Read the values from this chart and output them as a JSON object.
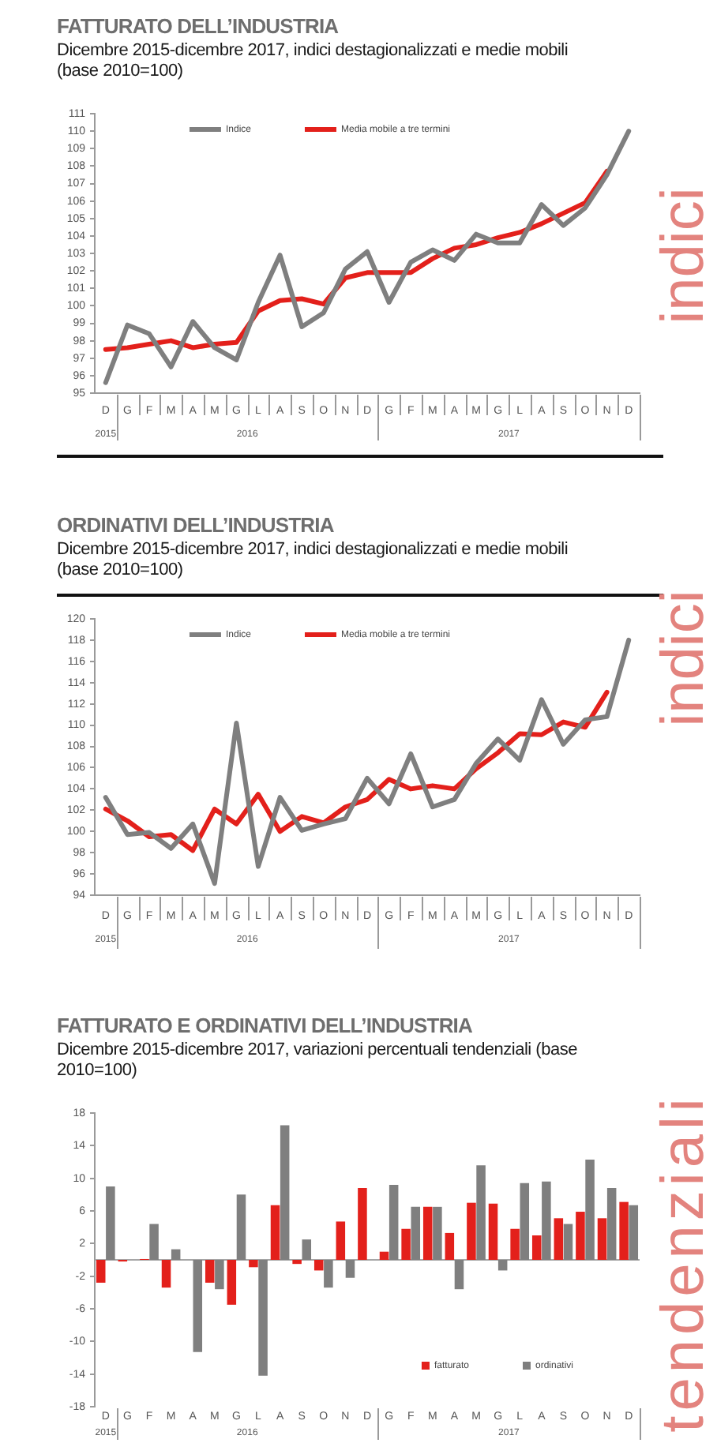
{
  "chart_data": [
    {
      "type": "line",
      "title": "FATTURATO DELL’INDUSTRIA",
      "subtitle": "Dicembre 2015-dicembre 2017, indici destagionalizzati e medie mobili (base 2010=100)",
      "categories": [
        "D",
        "G",
        "F",
        "M",
        "A",
        "M",
        "G",
        "L",
        "A",
        "S",
        "O",
        "N",
        "D",
        "G",
        "F",
        "M",
        "A",
        "M",
        "G",
        "L",
        "A",
        "S",
        "O",
        "N",
        "D"
      ],
      "series": [
        {
          "name": "Indice",
          "color": "#7f7f7f",
          "values": [
            95.6,
            98.9,
            98.4,
            96.5,
            99.1,
            97.6,
            96.9,
            100.2,
            102.9,
            98.8,
            99.6,
            102.1,
            103.1,
            100.2,
            102.5,
            103.2,
            102.6,
            104.1,
            103.6,
            103.6,
            105.8,
            104.6,
            105.6,
            107.5,
            110.0
          ]
        },
        {
          "name": "Media mobile a tre termini",
          "color": "#e3201b",
          "values": [
            97.5,
            97.6,
            97.8,
            98.0,
            97.6,
            97.8,
            97.9,
            99.7,
            100.3,
            100.4,
            100.1,
            101.6,
            101.9,
            101.9,
            101.9,
            102.7,
            103.3,
            103.5,
            103.9,
            104.2,
            104.7,
            105.3,
            105.9,
            107.7,
            null
          ]
        }
      ],
      "ylim": [
        95,
        111
      ],
      "yticks": [
        95,
        96,
        97,
        98,
        99,
        100,
        101,
        102,
        103,
        104,
        105,
        106,
        107,
        108,
        109,
        110,
        111
      ],
      "legend": "top",
      "marker": "none",
      "line_style": "solid",
      "annotations": [
        "2015",
        "2016",
        "2017",
        "indici"
      ]
    },
    {
      "type": "line",
      "title": "ORDINATIVI DELL’INDUSTRIA",
      "subtitle": "Dicembre 2015-dicembre 2017, indici destagionalizzati e medie mobili (base 2010=100)",
      "categories": [
        "D",
        "G",
        "F",
        "M",
        "A",
        "M",
        "G",
        "L",
        "A",
        "S",
        "O",
        "N",
        "D",
        "G",
        "F",
        "M",
        "A",
        "M",
        "G",
        "L",
        "A",
        "S",
        "O",
        "N",
        "D"
      ],
      "series": [
        {
          "name": "Indice",
          "color": "#7f7f7f",
          "values": [
            103.2,
            99.7,
            99.9,
            98.4,
            100.7,
            95.1,
            110.2,
            96.7,
            103.2,
            100.1,
            100.7,
            101.2,
            105.0,
            102.6,
            107.3,
            102.3,
            103.0,
            106.4,
            108.7,
            106.7,
            112.4,
            108.2,
            110.5,
            110.8,
            118.0
          ]
        },
        {
          "name": "Media mobile a tre termini",
          "color": "#e3201b",
          "values": [
            102.1,
            101.0,
            99.5,
            99.7,
            98.2,
            102.1,
            100.7,
            103.5,
            100.0,
            101.4,
            100.8,
            102.3,
            103.0,
            104.9,
            104.0,
            104.3,
            104.0,
            105.9,
            107.4,
            109.2,
            109.1,
            110.3,
            109.8,
            113.1,
            null
          ]
        }
      ],
      "ylim": [
        94,
        120
      ],
      "yticks": [
        94,
        96,
        98,
        100,
        102,
        104,
        106,
        108,
        110,
        112,
        114,
        116,
        118,
        120
      ],
      "legend": "top",
      "marker": "none",
      "line_style": "solid",
      "annotations": [
        "2015",
        "2016",
        "2017",
        "indici"
      ]
    },
    {
      "type": "bar",
      "title": "FATTURATO E ORDINATIVI DELL’INDUSTRIA",
      "subtitle": "Dicembre 2015-dicembre 2017, variazioni percentuali tendenziali (base 2010=100)",
      "categories": [
        "D",
        "G",
        "F",
        "M",
        "A",
        "M",
        "G",
        "L",
        "A",
        "S",
        "O",
        "N",
        "D",
        "G",
        "F",
        "M",
        "A",
        "M",
        "G",
        "L",
        "A",
        "S",
        "O",
        "N",
        "D"
      ],
      "series": [
        {
          "name": "fatturato",
          "color": "#e3201b",
          "values": [
            -2.8,
            -0.2,
            0.1,
            -3.4,
            0,
            -2.8,
            -5.5,
            -0.9,
            6.7,
            -0.5,
            -1.3,
            4.7,
            8.8,
            1.0,
            3.8,
            6.5,
            3.3,
            7.0,
            6.9,
            3.8,
            3.0,
            5.1,
            5.9,
            5.1,
            7.1
          ]
        },
        {
          "name": "ordinativi",
          "color": "#7f7f7f",
          "values": [
            9.0,
            0,
            4.4,
            1.3,
            -11.3,
            -3.6,
            8.0,
            -14.2,
            16.5,
            2.5,
            -3.4,
            -2.2,
            0,
            9.2,
            6.5,
            6.5,
            -3.6,
            11.6,
            -1.3,
            9.4,
            9.6,
            4.4,
            12.3,
            8.8,
            6.7
          ]
        }
      ],
      "ylim": [
        -18,
        18
      ],
      "yticks": [
        -18,
        -14,
        -10,
        -6,
        -2,
        2,
        6,
        10,
        14,
        18
      ],
      "legend": "bottom right",
      "ref_lines": [
        {
          "axis": "y",
          "value": 0,
          "color": "#a6a6a6"
        }
      ],
      "annotations": [
        "2015",
        "2016",
        "2017",
        "tendenziali"
      ]
    }
  ]
}
